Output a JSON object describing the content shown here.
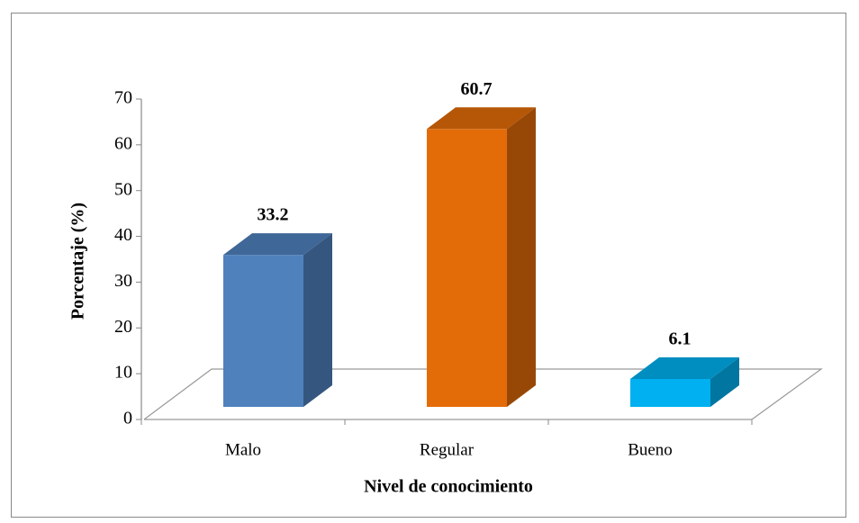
{
  "chart_data": {
    "type": "bar3d",
    "x_label": "Nivel de conocimiento",
    "y_label": "Porcentaje (%)",
    "categories": [
      "Malo",
      "Regular",
      "Bueno"
    ],
    "values": [
      33.2,
      60.7,
      6.1
    ],
    "colors": [
      "#4f81bd",
      "#e36c09",
      "#00b0f0"
    ],
    "ylim": [
      0,
      70
    ],
    "yticks": [
      0,
      10,
      20,
      30,
      40,
      50,
      60,
      70
    ]
  }
}
